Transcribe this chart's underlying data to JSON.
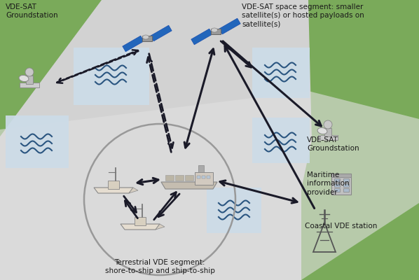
{
  "bg_grey": "#d2d2d2",
  "bg_green": "#7aaa5a",
  "bg_light_blue": "#ccdce8",
  "bg_lighter_grey": "#e0e0e0",
  "wave_color": "#2a5580",
  "arrow_dark": "#1a1a28",
  "text_color": "#1a1a1a",
  "circle_color": "#999999",
  "figsize": [
    5.98,
    4.0
  ],
  "dpi": 100,
  "labels": {
    "gs_left": "VDE-SAT\nGroundstation",
    "gs_right": "VDE-SAT\nGroundstation",
    "maritime": "Maritime\ninformation\nprovider",
    "coastal": "Coastal VDE station",
    "terrestrial": "Terrestrial VDE segment:\nshore-to-ship and ship-to-ship",
    "space_seg": "VDE-SAT space segment: smaller\nsatellite(s) or hosted payloads on\nsatellite(s)"
  }
}
